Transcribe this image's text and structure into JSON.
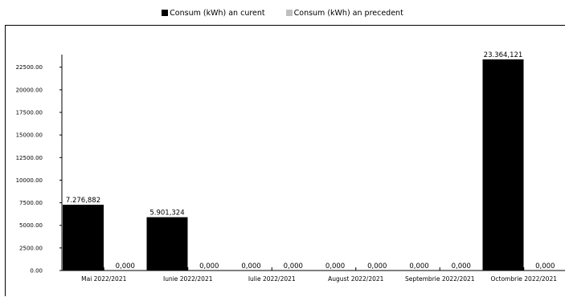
{
  "chart_data": {
    "type": "bar",
    "categories": [
      "Mai 2022/2021",
      "Iunie 2022/2021",
      "Iulie 2022/2021",
      "August 2022/2021",
      "Septembrie 2022/2021",
      "Octombrie 2022/2021"
    ],
    "series": [
      {
        "name": "Consum (kWh) an curent",
        "color": "#000000",
        "values": [
          7276.882,
          5901.324,
          0,
          0,
          0,
          23364.121
        ],
        "labels": [
          "7.276,882",
          "5.901,324",
          "0,000",
          "0,000",
          "0,000",
          "23.364,121"
        ]
      },
      {
        "name": "Consum (kWh) an precedent",
        "color": "#c0c0c0",
        "values": [
          0,
          0,
          0,
          0,
          0,
          0
        ],
        "labels": [
          "0,000",
          "0,000",
          "0,000",
          "0,000",
          "0,000",
          "0,000"
        ]
      }
    ],
    "y_ticks": [
      0,
      2500,
      5000,
      7500,
      10000,
      12500,
      15000,
      17500,
      20000,
      22500
    ],
    "y_tick_labels": [
      "0.00",
      "2500.00",
      "5000.00",
      "7500.00",
      "10000.00",
      "12500.00",
      "15000.00",
      "17500.00",
      "20000.00",
      "22500.00"
    ],
    "ylim": [
      0,
      23364.121
    ],
    "title": "",
    "xlabel": "",
    "ylabel": "",
    "grid": false,
    "legend_position": "top-center"
  }
}
